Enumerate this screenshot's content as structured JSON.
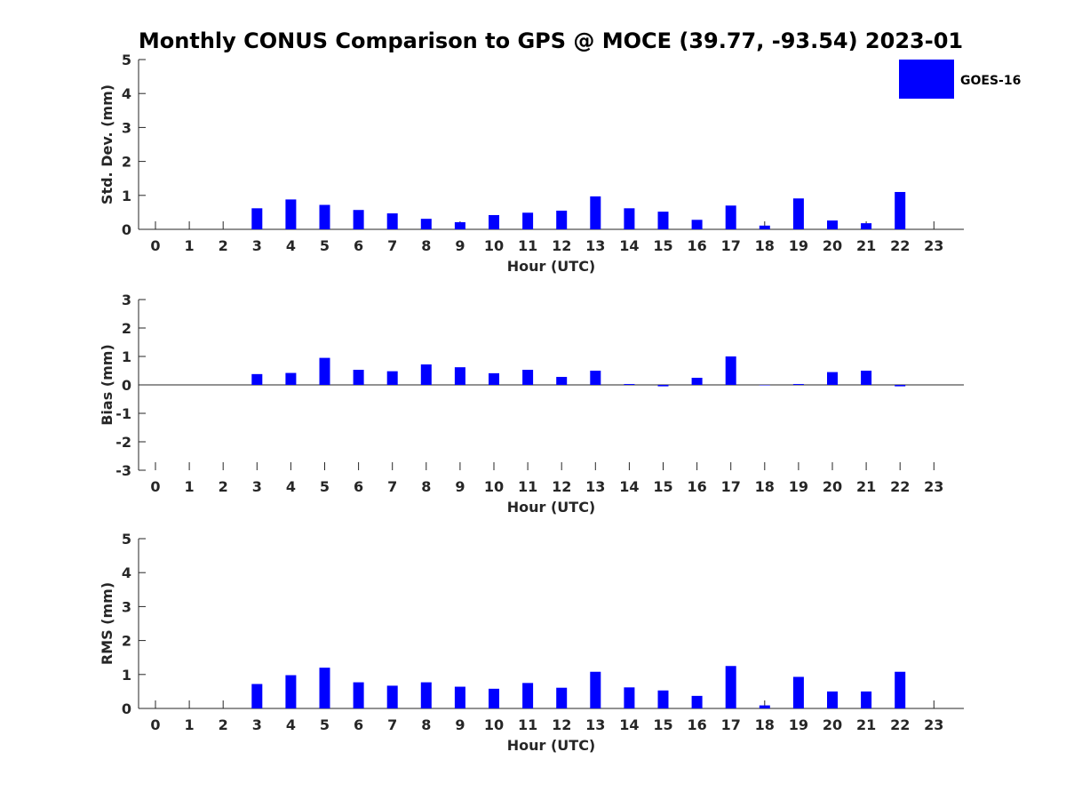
{
  "title": "Monthly CONUS Comparison to GPS @ MOCE (39.77, -93.54) 2023-01",
  "legend": {
    "label": "GOES-16",
    "color": "#0000ff",
    "placement": "top-right"
  },
  "chart_data": [
    {
      "type": "bar",
      "name": "std-dev",
      "ylabel": "Std. Dev. (mm)",
      "xlabel": "Hour (UTC)",
      "ylim": [
        0,
        5
      ],
      "yticks": [
        0,
        1,
        2,
        3,
        4,
        5
      ],
      "categories": [
        0,
        1,
        2,
        3,
        4,
        5,
        6,
        7,
        8,
        9,
        10,
        11,
        12,
        13,
        14,
        15,
        16,
        17,
        18,
        19,
        20,
        21,
        22,
        23
      ],
      "series": [
        {
          "name": "GOES-16",
          "color": "#0000ff",
          "values": [
            null,
            null,
            null,
            0.62,
            0.88,
            0.72,
            0.57,
            0.47,
            0.31,
            0.21,
            0.42,
            0.49,
            0.55,
            0.97,
            0.62,
            0.52,
            0.28,
            0.7,
            0.11,
            0.91,
            0.26,
            0.18,
            1.1,
            null
          ]
        }
      ]
    },
    {
      "type": "bar",
      "name": "bias",
      "ylabel": "Bias (mm)",
      "xlabel": "Hour (UTC)",
      "ylim": [
        -3,
        3
      ],
      "yticks": [
        -3,
        -2,
        -1,
        0,
        1,
        2,
        3
      ],
      "categories": [
        0,
        1,
        2,
        3,
        4,
        5,
        6,
        7,
        8,
        9,
        10,
        11,
        12,
        13,
        14,
        15,
        16,
        17,
        18,
        19,
        20,
        21,
        22,
        23
      ],
      "series": [
        {
          "name": "GOES-16",
          "color": "#0000ff",
          "values": [
            null,
            null,
            null,
            0.38,
            0.42,
            0.95,
            0.53,
            0.48,
            0.72,
            0.62,
            0.41,
            0.53,
            0.28,
            0.5,
            0.03,
            -0.05,
            0.25,
            1.0,
            0.0,
            0.03,
            0.45,
            0.5,
            -0.05,
            null
          ]
        }
      ]
    },
    {
      "type": "bar",
      "name": "rms",
      "ylabel": "RMS (mm)",
      "xlabel": "Hour (UTC)",
      "ylim": [
        0,
        5
      ],
      "yticks": [
        0,
        1,
        2,
        3,
        4,
        5
      ],
      "categories": [
        0,
        1,
        2,
        3,
        4,
        5,
        6,
        7,
        8,
        9,
        10,
        11,
        12,
        13,
        14,
        15,
        16,
        17,
        18,
        19,
        20,
        21,
        22,
        23
      ],
      "series": [
        {
          "name": "GOES-16",
          "color": "#0000ff",
          "values": [
            null,
            null,
            null,
            0.72,
            0.98,
            1.2,
            0.77,
            0.67,
            0.77,
            0.64,
            0.58,
            0.75,
            0.61,
            1.08,
            0.62,
            0.53,
            0.37,
            1.25,
            0.09,
            0.93,
            0.5,
            0.5,
            1.08,
            null
          ]
        }
      ]
    }
  ]
}
